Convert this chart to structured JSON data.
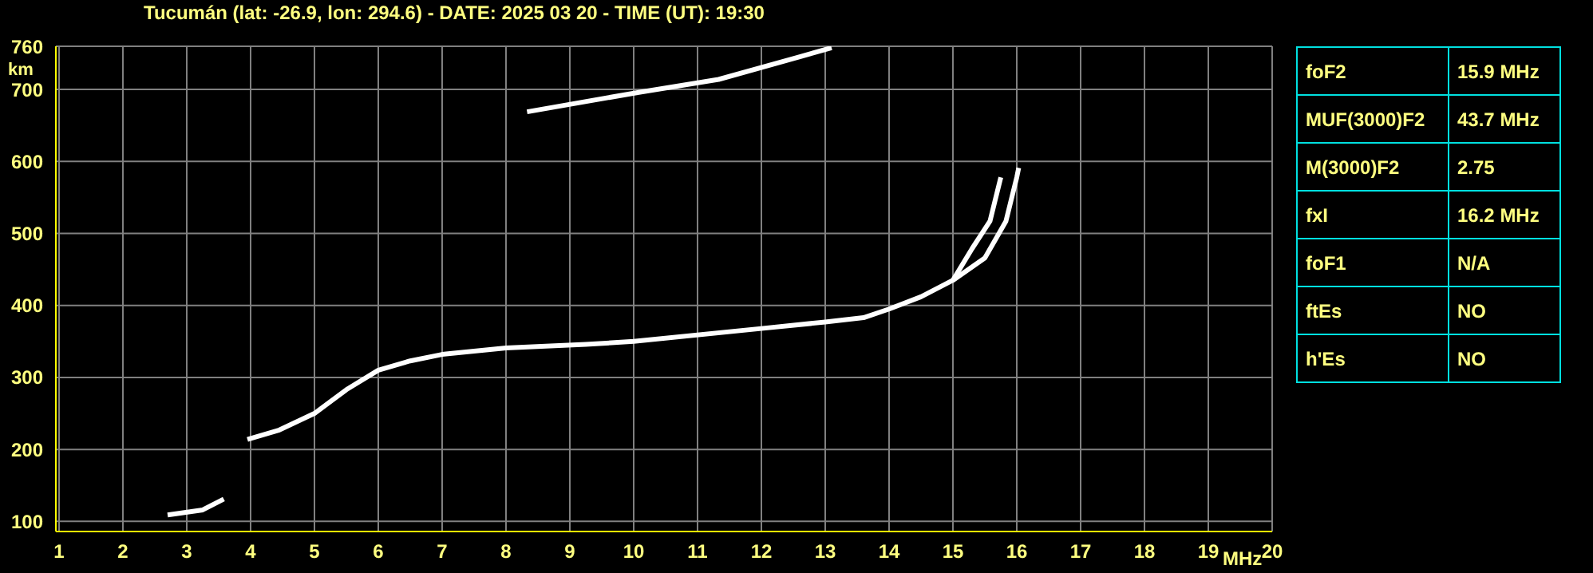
{
  "chart_data": {
    "type": "line",
    "title": "Tucumán (lat: -26.9, lon: 294.6) - DATE: 2025 03 20 - TIME (UT): 19:30",
    "xlabel": "MHz",
    "ylabel": "km",
    "series": [
      {
        "color": "#ffffff",
        "x": [
          2.7,
          3.25,
          3.58
        ],
        "values": [
          109,
          116,
          131
        ]
      },
      {
        "color": "#ffffff",
        "x": [
          3.95,
          4.45,
          5.0,
          5.5,
          6.0,
          6.5,
          7.0,
          8.0,
          9.25,
          10.0,
          12.0,
          13.0,
          13.6,
          14.0,
          14.5,
          15.0,
          15.3,
          15.58,
          15.75
        ],
        "values": [
          214,
          227,
          250,
          283,
          310,
          323,
          332,
          341,
          346,
          350,
          368,
          377,
          383,
          395,
          412,
          435,
          479,
          517,
          578
        ]
      },
      {
        "color": "#ffffff",
        "x": [
          15.0,
          15.5,
          15.83,
          16.0,
          16.03
        ],
        "values": [
          435,
          466,
          517,
          578,
          591
        ]
      },
      {
        "color": "#ffffff",
        "x": [
          8.33,
          10.08,
          11.33,
          12.58,
          13.1
        ],
        "values": [
          669,
          696,
          714,
          745,
          758
        ]
      }
    ],
    "xlim": [
      0.95,
      20
    ],
    "xticks": [
      1,
      2,
      3,
      4,
      5,
      6,
      7,
      8,
      9,
      10,
      11,
      12,
      13,
      14,
      15,
      16,
      17,
      18,
      19,
      20
    ],
    "ylim": [
      86,
      760
    ],
    "yticks": [
      100,
      200,
      300,
      400,
      500,
      600,
      700,
      760
    ],
    "grid": true,
    "marker": "none",
    "line_style": "solid",
    "annotations": [
      "foF2",
      "15.9 MHz",
      "MUF(3000)F2",
      "43.7 MHz",
      "M(3000)F2",
      "2.75",
      "fxI",
      "16.2 MHz",
      "foF1",
      "N/A",
      "ftEs",
      "NO",
      "h'Es",
      "NO"
    ]
  }
}
